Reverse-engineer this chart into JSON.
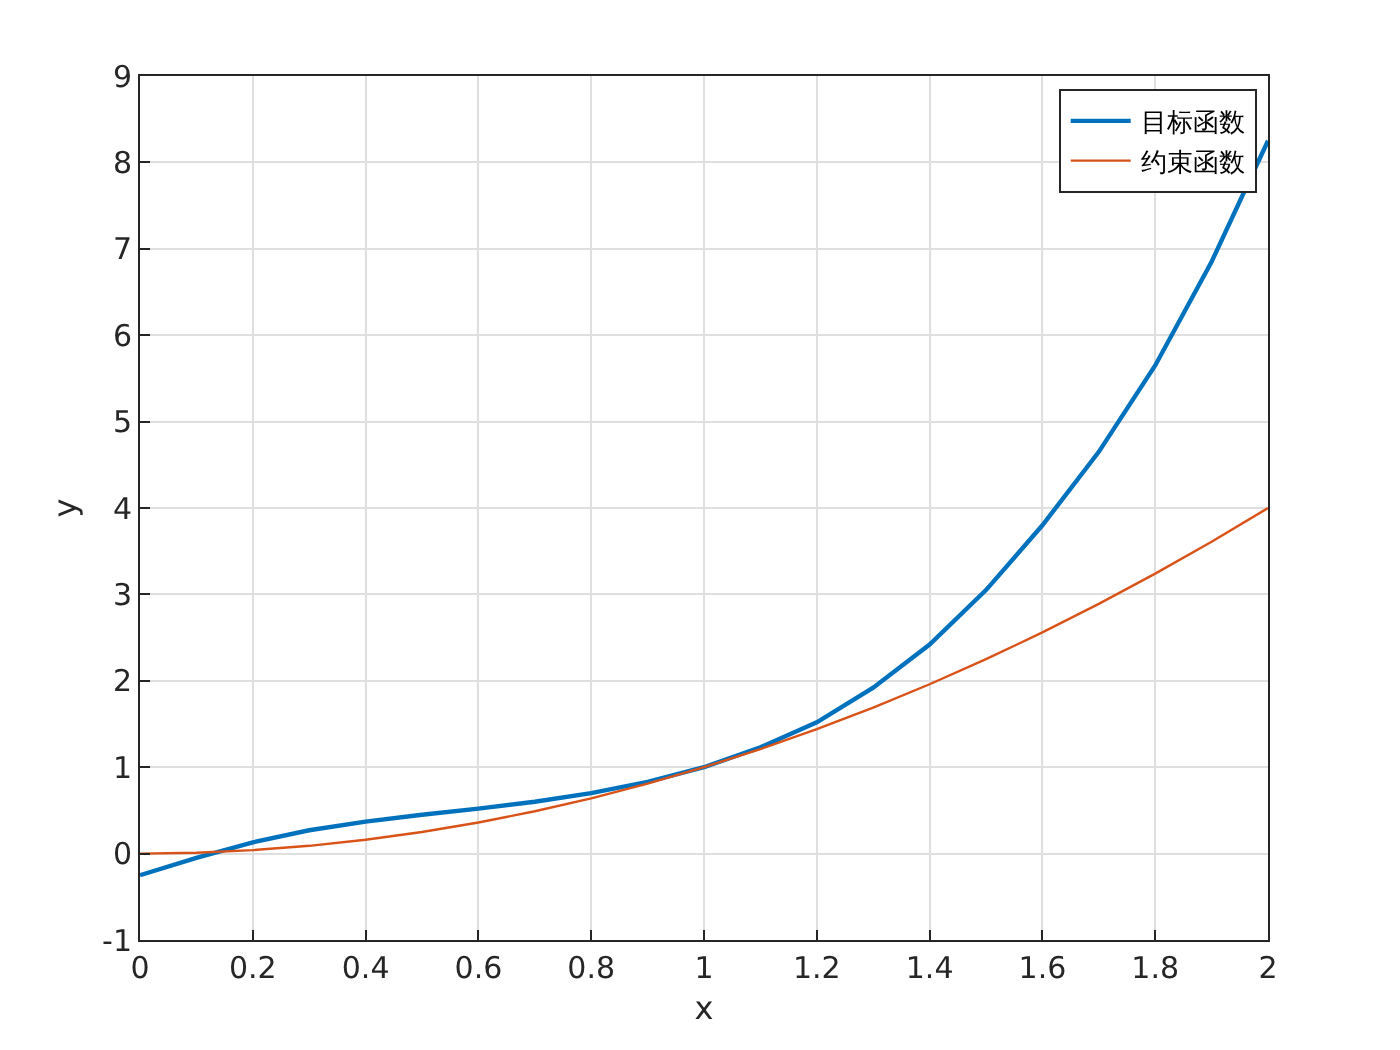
{
  "chart_data": {
    "type": "line",
    "xlabel": "x",
    "ylabel": "y",
    "x": [
      0,
      0.1,
      0.2,
      0.3,
      0.4,
      0.5,
      0.6,
      0.7,
      0.8,
      0.9,
      1,
      1.1,
      1.2,
      1.3,
      1.4,
      1.5,
      1.6,
      1.7,
      1.8,
      1.9,
      2
    ],
    "series": [
      {
        "name": "目标函数",
        "color": "#0072bd",
        "values": [
          -0.25,
          -0.05,
          0.13,
          0.27,
          0.37,
          0.45,
          0.52,
          0.6,
          0.7,
          0.83,
          1.0,
          1.23,
          1.52,
          1.92,
          2.42,
          3.05,
          3.8,
          4.65,
          5.65,
          6.85,
          8.25
        ]
      },
      {
        "name": "约束函数",
        "color": "#d95319",
        "values": [
          0,
          0.01,
          0.04,
          0.09,
          0.16,
          0.25,
          0.36,
          0.49,
          0.64,
          0.81,
          1,
          1.21,
          1.44,
          1.69,
          1.96,
          2.25,
          2.56,
          2.89,
          3.24,
          3.61,
          4
        ]
      }
    ],
    "xlim": [
      0,
      2
    ],
    "xticks": [
      0,
      0.2,
      0.4,
      0.6,
      0.8,
      1,
      1.2,
      1.4,
      1.6,
      1.8,
      2
    ],
    "ylim": [
      -1,
      9
    ],
    "yticks": [
      -1,
      0,
      1,
      2,
      3,
      4,
      5,
      6,
      7,
      8,
      9
    ],
    "grid": true,
    "legend": "top right",
    "marker": "none",
    "line_style": "solid"
  }
}
